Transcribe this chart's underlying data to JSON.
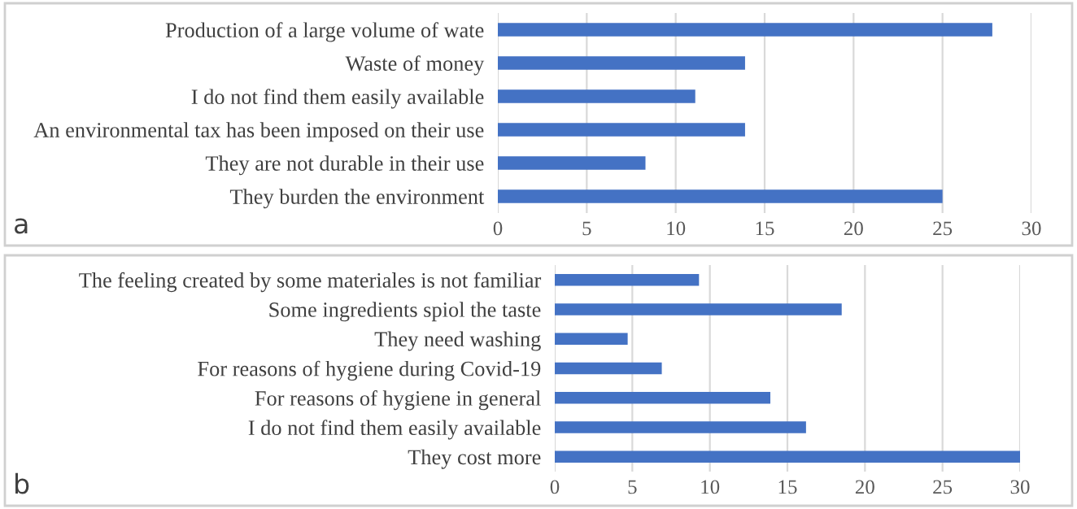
{
  "chart_data": [
    {
      "type": "bar",
      "orientation": "horizontal",
      "categories": [
        "Production of a large volume of wate",
        "Waste of money",
        "I do not find them easily available",
        "An environmental tax has been imposed on their use",
        "They are not durable in their use",
        "They burden the environment"
      ],
      "values": [
        27.8,
        13.9,
        11.1,
        13.9,
        8.3,
        25.0
      ],
      "color": "#4472c4",
      "xlim": [
        0,
        30
      ],
      "xticks": [
        0,
        5,
        10,
        15,
        20,
        25,
        30
      ],
      "grid": "x",
      "annotations": [
        "a"
      ]
    },
    {
      "type": "bar",
      "orientation": "horizontal",
      "categories": [
        "The feeling created by some materiales is not familiar",
        "Some ingredients spiol the taste",
        "They need washing",
        "For reasons of hygiene during Covid-19",
        "For reasons of hygiene in general",
        "I do not find them easily available",
        "They cost more"
      ],
      "values": [
        9.3,
        18.5,
        4.7,
        6.9,
        13.9,
        16.2,
        30.0
      ],
      "color": "#4472c4",
      "xlim": [
        0,
        30
      ],
      "xticks": [
        0,
        5,
        10,
        15,
        20,
        25,
        30
      ],
      "grid": "x",
      "annotations": [
        "b"
      ]
    }
  ]
}
